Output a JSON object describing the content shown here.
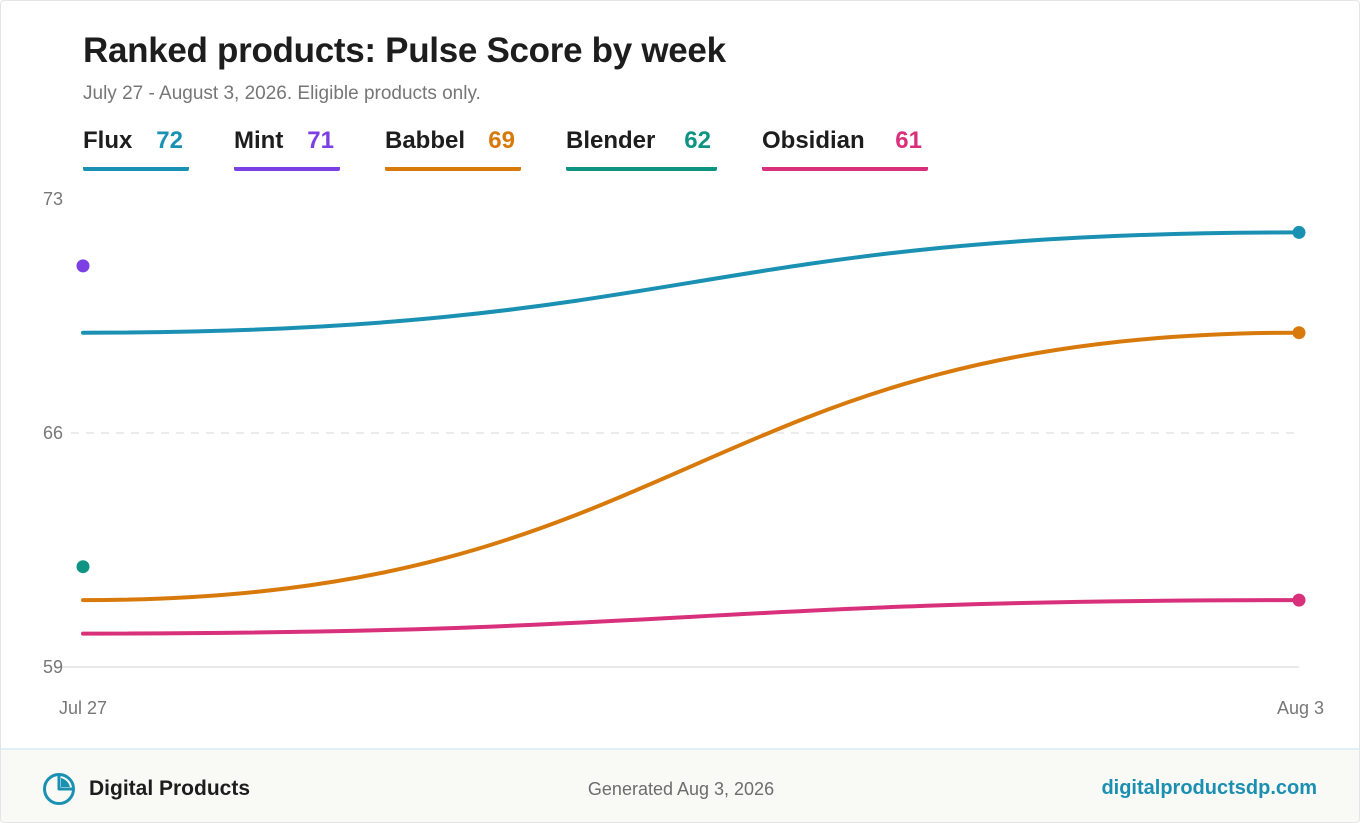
{
  "header": {
    "title": "Ranked products: Pulse Score by week",
    "subtitle": "July 27 - August 3, 2026. Eligible products only."
  },
  "legend": [
    {
      "name": "Flux",
      "value": "72",
      "color": "#1a91b3"
    },
    {
      "name": "Mint",
      "value": "71",
      "color": "#7b3fe4"
    },
    {
      "name": "Babbel",
      "value": "69",
      "color": "#d87a0b"
    },
    {
      "name": "Blender",
      "value": "62",
      "color": "#0f9484"
    },
    {
      "name": "Obsidian",
      "value": "61",
      "color": "#d8307a"
    }
  ],
  "chart_data": {
    "type": "line",
    "title": "Ranked products: Pulse Score by week",
    "x": [
      "Jul 27",
      "Aug 3"
    ],
    "yticks": [
      59,
      66,
      73
    ],
    "ylim": [
      59,
      73
    ],
    "grid": true,
    "legend_position": "top",
    "series": [
      {
        "name": "Flux",
        "color": "#1a91b3",
        "values": [
          69,
          72
        ]
      },
      {
        "name": "Mint",
        "color": "#7b3fe4",
        "values": [
          71,
          null
        ]
      },
      {
        "name": "Babbel",
        "color": "#d87a0b",
        "values": [
          61,
          69
        ]
      },
      {
        "name": "Blender",
        "color": "#0f9484",
        "values": [
          62,
          null
        ]
      },
      {
        "name": "Obsidian",
        "color": "#d8307a",
        "values": [
          60,
          61
        ]
      }
    ]
  },
  "footer": {
    "brand": "Digital Products",
    "generated": "Generated Aug 3, 2026",
    "website": "digitalproductsdp.com",
    "brand_icon": "pie-chart-icon"
  }
}
